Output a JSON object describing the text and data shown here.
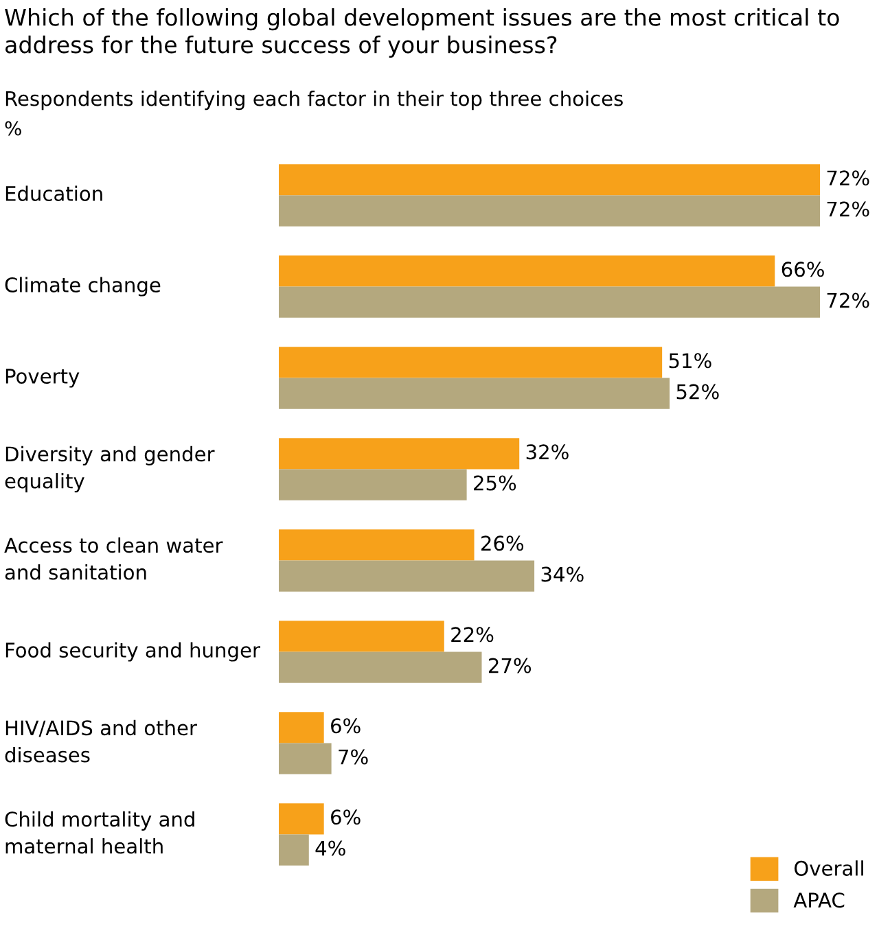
{
  "chart_data": {
    "type": "bar",
    "orientation": "horizontal",
    "title": "Which of the following global development issues are the most critical to address for the future success of your business?",
    "subtitle": "Respondents identifying each factor in their top three choices",
    "annotations": [
      "%"
    ],
    "categories": [
      "Education",
      "Climate change",
      "Poverty",
      "Diversity and gender equality",
      "Access to clean water and sanitation",
      "Food security and hunger",
      "HIV/AIDS and other diseases",
      "Child mortality and maternal health"
    ],
    "series": [
      {
        "name": "Overall",
        "color": "#f7a11a",
        "values": [
          72,
          66,
          51,
          32,
          26,
          22,
          6,
          6
        ],
        "value_labels": [
          "72%",
          "66%",
          "51%",
          "32%",
          "26%",
          "22%",
          "6%",
          "6%"
        ]
      },
      {
        "name": "APAC",
        "color": "#b4a87e",
        "values": [
          72,
          72,
          52,
          25,
          34,
          27,
          7,
          4
        ],
        "value_labels": [
          "72%",
          "72%",
          "52%",
          "25%",
          "34%",
          "27%",
          "7%",
          "4%"
        ]
      }
    ],
    "legend": "bottom right"
  }
}
